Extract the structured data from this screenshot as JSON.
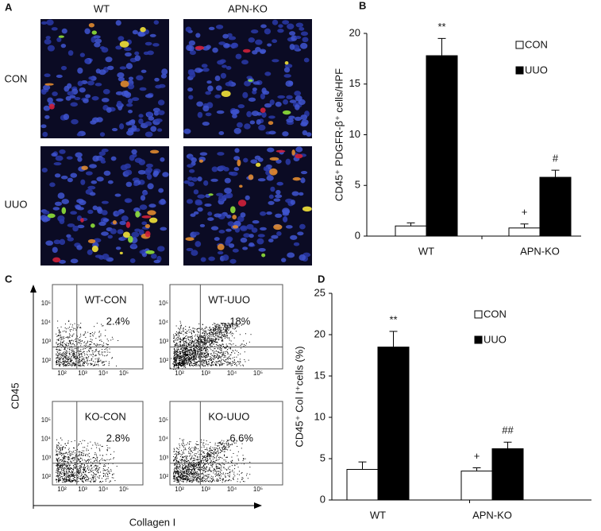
{
  "panel_a": {
    "label": "A",
    "columns": [
      "WT",
      "APN-KO"
    ],
    "rows": [
      "CON",
      "UUO"
    ]
  },
  "panel_c": {
    "label": "C",
    "ylabel": "CD45",
    "xlabel": "Collagen I",
    "ticks": [
      "10²",
      "10³",
      "10⁴",
      "10⁵"
    ],
    "plots": [
      {
        "name": "WT-CON",
        "percent": "2.4%"
      },
      {
        "name": "WT-UUO",
        "percent": "18%"
      },
      {
        "name": "KO-CON",
        "percent": "2.8%"
      },
      {
        "name": "KO-UUO",
        "percent": "6.6%"
      }
    ]
  },
  "chart_data": [
    {
      "type": "bar",
      "panel": "B",
      "categories": [
        "WT",
        "APN-KO"
      ],
      "ylabel": "CD45⁺ PDGFR-β⁺ cells/HPF",
      "ylim": [
        0,
        20
      ],
      "yticks": [
        0,
        5,
        10,
        15,
        20
      ],
      "series": [
        {
          "name": "CON",
          "color": "#ffffff",
          "values": [
            1.0,
            0.8
          ],
          "errors": [
            0.3,
            0.4
          ],
          "significance": [
            null,
            "+"
          ]
        },
        {
          "name": "UUO",
          "color": "#000000",
          "values": [
            17.8,
            5.8
          ],
          "errors": [
            1.7,
            0.7
          ],
          "significance": [
            "**",
            "#"
          ]
        }
      ]
    },
    {
      "type": "bar",
      "panel": "D",
      "categories": [
        "WT",
        "APN-KO"
      ],
      "ylabel": "CD45⁺ Col I⁺cells (%)",
      "ylim": [
        0,
        25
      ],
      "yticks": [
        0,
        5,
        10,
        15,
        20,
        25
      ],
      "series": [
        {
          "name": "CON",
          "color": "#ffffff",
          "values": [
            3.7,
            3.5
          ],
          "errors": [
            0.9,
            0.4
          ],
          "significance": [
            null,
            "+"
          ]
        },
        {
          "name": "UUO",
          "color": "#000000",
          "values": [
            18.5,
            6.2
          ],
          "errors": [
            1.9,
            0.8
          ],
          "significance": [
            "**",
            "##"
          ]
        }
      ]
    }
  ]
}
